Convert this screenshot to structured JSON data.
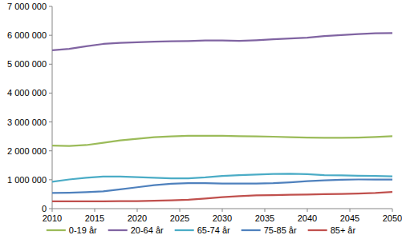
{
  "chart_data": {
    "type": "line",
    "x": [
      2010,
      2012,
      2014,
      2016,
      2018,
      2020,
      2022,
      2024,
      2026,
      2028,
      2030,
      2032,
      2034,
      2036,
      2038,
      2040,
      2042,
      2044,
      2046,
      2048,
      2050
    ],
    "xlim": [
      2010,
      2050
    ],
    "xticks": [
      2010,
      2015,
      2020,
      2025,
      2030,
      2035,
      2040,
      2045,
      2050
    ],
    "ylim": [
      0,
      7000000
    ],
    "yticks": [
      0,
      {
        "value": 1000000,
        "label": "1 000 000"
      },
      {
        "value": 2000000,
        "label": "2 000 000"
      },
      {
        "value": 3000000,
        "label": "3 000 000"
      },
      {
        "value": 4000000,
        "label": "4 000 000"
      },
      {
        "value": 5000000,
        "label": "5 000 000"
      },
      {
        "value": 6000000,
        "label": "6 000 000"
      },
      {
        "value": 7000000,
        "label": "7 000 000"
      }
    ],
    "grid": false,
    "legend": "bottom",
    "series": [
      {
        "name": "0-19 år",
        "color": "#9bbb59",
        "values": [
          2180000,
          2170000,
          2200000,
          2280000,
          2360000,
          2420000,
          2470000,
          2500000,
          2520000,
          2520000,
          2520000,
          2510000,
          2500000,
          2490000,
          2470000,
          2460000,
          2450000,
          2450000,
          2460000,
          2480000,
          2510000
        ]
      },
      {
        "name": "20-64 år",
        "color": "#8064a2",
        "values": [
          5480000,
          5530000,
          5620000,
          5700000,
          5740000,
          5760000,
          5780000,
          5790000,
          5800000,
          5820000,
          5820000,
          5810000,
          5830000,
          5860000,
          5890000,
          5920000,
          5970000,
          6010000,
          6040000,
          6070000,
          6080000
        ]
      },
      {
        "name": "65-74 år",
        "color": "#4bacc6",
        "values": [
          930000,
          1010000,
          1070000,
          1110000,
          1110000,
          1090000,
          1070000,
          1050000,
          1050000,
          1080000,
          1130000,
          1160000,
          1180000,
          1200000,
          1210000,
          1190000,
          1160000,
          1150000,
          1140000,
          1130000,
          1120000
        ]
      },
      {
        "name": "75-85 år",
        "color": "#4f81bd",
        "values": [
          540000,
          550000,
          570000,
          600000,
          670000,
          740000,
          810000,
          860000,
          880000,
          880000,
          870000,
          870000,
          870000,
          880000,
          910000,
          950000,
          980000,
          1000000,
          1010000,
          1010000,
          1010000
        ]
      },
      {
        "name": "85+ år",
        "color": "#c0504d",
        "values": [
          250000,
          250000,
          250000,
          250000,
          260000,
          260000,
          270000,
          290000,
          310000,
          350000,
          400000,
          430000,
          460000,
          470000,
          480000,
          490000,
          500000,
          510000,
          520000,
          540000,
          580000
        ]
      }
    ]
  }
}
